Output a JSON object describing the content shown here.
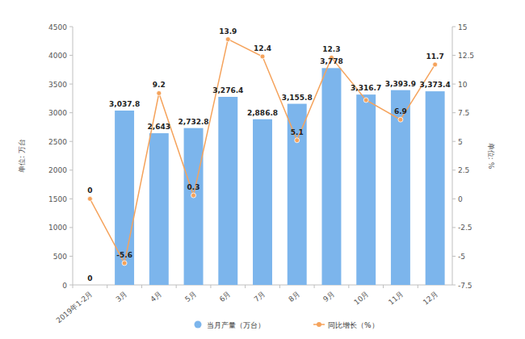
{
  "chart_data": {
    "type": "bar",
    "categories": [
      "2019年1-2月",
      "3月",
      "4月",
      "5月",
      "6月",
      "7月",
      "8月",
      "9月",
      "10月",
      "11月",
      "12月"
    ],
    "series": [
      {
        "name": "当月产量（万台）",
        "type": "bar",
        "color": "#7cb5ec",
        "values": [
          0,
          3037.8,
          2643,
          2732.8,
          3276.4,
          2886.8,
          3155.8,
          3778,
          3316.7,
          3393.9,
          3373.4
        ],
        "value_labels": [
          "0",
          "3,037.8",
          "2,643",
          "2,732.8",
          "3,276.4",
          "2,886.8",
          "3,155.8",
          "3,778",
          "3,316.7",
          "3,393.9",
          "3,373.4"
        ]
      },
      {
        "name": "同比增长（%）",
        "type": "line",
        "axis": "y2",
        "color": "#f5a35c",
        "marker": "circle",
        "values": [
          0,
          -5.6,
          9.2,
          0.3,
          13.9,
          12.4,
          5.1,
          12.3,
          8.6,
          6.9,
          11.7
        ],
        "value_labels": [
          "0",
          "-5.6",
          "9.2",
          "0.3",
          "13.9",
          "12.4",
          "5.1",
          "12.3",
          null,
          "6.9",
          "11.7"
        ]
      }
    ],
    "y_label": "单位: 万台",
    "y2_label": "单位: %",
    "ylim": [
      0,
      4500
    ],
    "yticks": [
      0,
      500,
      1000,
      1500,
      2000,
      2500,
      3000,
      3500,
      4000,
      4500
    ],
    "y2lim": [
      -7.5,
      15
    ],
    "y2ticks": [
      -7.5,
      -5,
      -2.5,
      0,
      2.5,
      5,
      7.5,
      10,
      12.5,
      15
    ],
    "grid": false,
    "legend": "bottom",
    "data_labels": true
  }
}
